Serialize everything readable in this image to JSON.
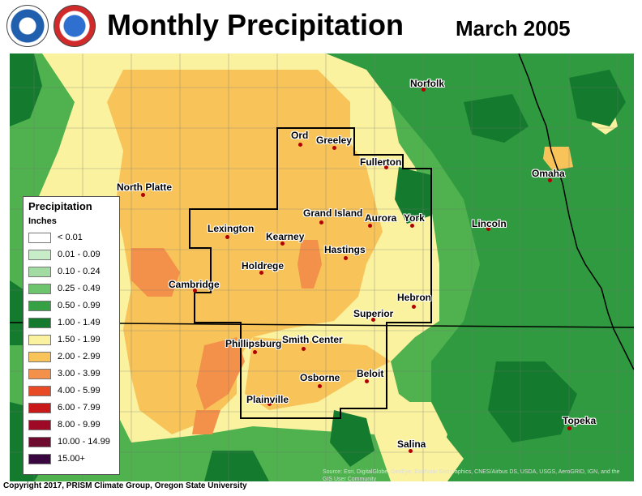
{
  "header": {
    "title": "Monthly Precipitation",
    "date": "March 2005",
    "logos": [
      "noaa-logo",
      "national-weather-service-logo"
    ]
  },
  "legend": {
    "title": "Precipitation",
    "units": "Inches",
    "items": [
      {
        "label": "< 0.01",
        "color": "#ffffff"
      },
      {
        "label": "0.01 - 0.09",
        "color": "#c8ecc8"
      },
      {
        "label": "0.10 - 0.24",
        "color": "#a3dca3"
      },
      {
        "label": "0.25 - 0.49",
        "color": "#6cc46c"
      },
      {
        "label": "0.50 - 0.99",
        "color": "#36a044"
      },
      {
        "label": "1.00 - 1.49",
        "color": "#147a2e"
      },
      {
        "label": "1.50 - 1.99",
        "color": "#fbf2a0"
      },
      {
        "label": "2.00 - 2.99",
        "color": "#f8c45a"
      },
      {
        "label": "3.00 - 3.99",
        "color": "#f3904a"
      },
      {
        "label": "4.00 - 5.99",
        "color": "#e84a26"
      },
      {
        "label": "6.00 - 7.99",
        "color": "#c8181a"
      },
      {
        "label": "8.00 - 9.99",
        "color": "#9e0a26"
      },
      {
        "label": "10.00 - 14.99",
        "color": "#6e0a2e"
      },
      {
        "label": "15.00+",
        "color": "#3a0640"
      }
    ]
  },
  "cities": [
    {
      "name": "Norfolk"
    },
    {
      "name": "Ord"
    },
    {
      "name": "Greeley"
    },
    {
      "name": "Fullerton"
    },
    {
      "name": "North Platte"
    },
    {
      "name": "Grand Island"
    },
    {
      "name": "Aurora"
    },
    {
      "name": "York"
    },
    {
      "name": "Omaha"
    },
    {
      "name": "Lincoln"
    },
    {
      "name": "Lexington"
    },
    {
      "name": "Kearney"
    },
    {
      "name": "Hastings"
    },
    {
      "name": "Holdrege"
    },
    {
      "name": "Cambridge"
    },
    {
      "name": "Hebron"
    },
    {
      "name": "Superior"
    },
    {
      "name": "Phillipsburg"
    },
    {
      "name": "Smith Center"
    },
    {
      "name": "Osborne"
    },
    {
      "name": "Beloit"
    },
    {
      "name": "Plainville"
    },
    {
      "name": "Topeka"
    },
    {
      "name": "Salina"
    }
  ],
  "footer": {
    "copyright": "Copyright 2017, PRISM Climate Group, Oregon State University",
    "source": "Source: Esri, DigitalGlobe, GeoEye, Earthstar Geographics, CNES/Airbus DS, USDA, USGS, AeroGRID, IGN, and the GIS User Community"
  }
}
